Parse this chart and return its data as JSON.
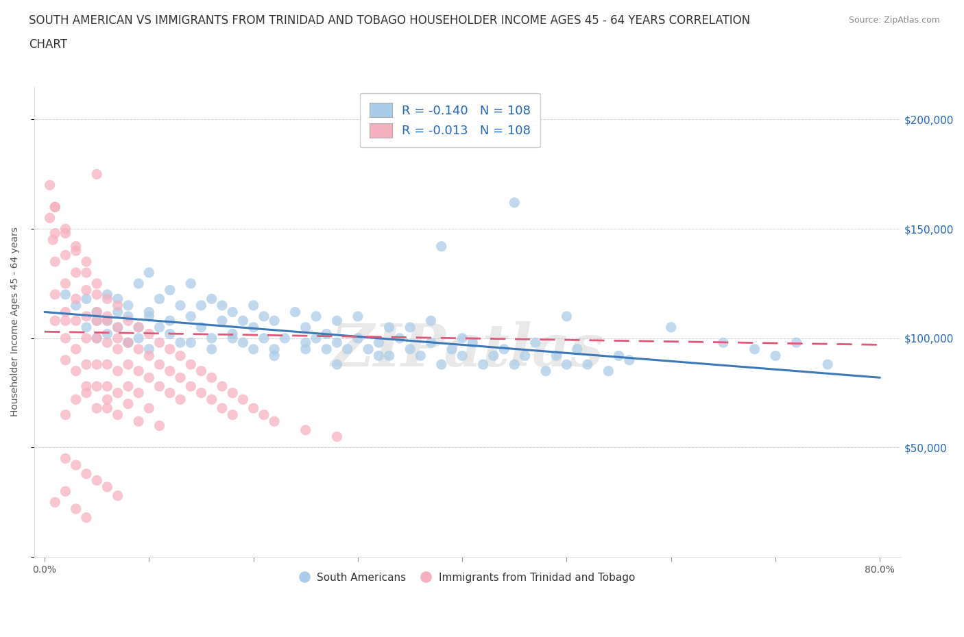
{
  "title_line1": "SOUTH AMERICAN VS IMMIGRANTS FROM TRINIDAD AND TOBAGO HOUSEHOLDER INCOME AGES 45 - 64 YEARS CORRELATION",
  "title_line2": "CHART",
  "source_text": "Source: ZipAtlas.com",
  "ylabel": "Householder Income Ages 45 - 64 years",
  "xlim": [
    -0.01,
    0.82
  ],
  "ylim": [
    0,
    215000
  ],
  "yticks": [
    0,
    50000,
    100000,
    150000,
    200000
  ],
  "right_ytick_labels": [
    "$50,000",
    "$100,000",
    "$150,000",
    "$200,000"
  ],
  "xtick_vals": [
    0.0,
    0.1,
    0.2,
    0.3,
    0.4,
    0.5,
    0.6,
    0.7,
    0.8
  ],
  "watermark": "ZIPatlas",
  "blue_color": "#aacce8",
  "blue_edge_color": "#5599cc",
  "pink_color": "#f5b0c0",
  "pink_edge_color": "#e06888",
  "blue_line_color": "#3a78b8",
  "pink_line_color": "#e05878",
  "legend_R1": "-0.140",
  "legend_N1": "108",
  "legend_R2": "-0.013",
  "legend_N2": "108",
  "label1": "South Americans",
  "label2": "Immigrants from Trinidad and Tobago",
  "title_fontsize": 12,
  "axis_label_fontsize": 10,
  "tick_fontsize": 10,
  "legend_fontsize": 13,
  "blue_scatter_x": [
    0.02,
    0.03,
    0.04,
    0.04,
    0.05,
    0.05,
    0.06,
    0.06,
    0.07,
    0.07,
    0.08,
    0.08,
    0.08,
    0.09,
    0.09,
    0.1,
    0.1,
    0.1,
    0.11,
    0.11,
    0.12,
    0.12,
    0.13,
    0.13,
    0.14,
    0.14,
    0.15,
    0.15,
    0.16,
    0.16,
    0.17,
    0.17,
    0.18,
    0.18,
    0.19,
    0.19,
    0.2,
    0.2,
    0.21,
    0.21,
    0.22,
    0.22,
    0.23,
    0.24,
    0.25,
    0.25,
    0.26,
    0.26,
    0.27,
    0.27,
    0.28,
    0.28,
    0.29,
    0.3,
    0.3,
    0.31,
    0.32,
    0.33,
    0.33,
    0.34,
    0.35,
    0.35,
    0.36,
    0.37,
    0.37,
    0.38,
    0.39,
    0.4,
    0.4,
    0.41,
    0.42,
    0.43,
    0.44,
    0.45,
    0.46,
    0.47,
    0.48,
    0.49,
    0.5,
    0.51,
    0.52,
    0.54,
    0.56,
    0.38,
    0.45,
    0.5,
    0.55,
    0.6,
    0.65,
    0.68,
    0.7,
    0.72,
    0.75,
    0.05,
    0.06,
    0.07,
    0.08,
    0.09,
    0.1,
    0.12,
    0.14,
    0.16,
    0.18,
    0.2,
    0.22,
    0.25,
    0.28,
    0.32
  ],
  "blue_scatter_y": [
    120000,
    115000,
    118000,
    105000,
    112000,
    108000,
    120000,
    102000,
    118000,
    105000,
    115000,
    98000,
    110000,
    125000,
    100000,
    130000,
    112000,
    95000,
    118000,
    105000,
    122000,
    108000,
    115000,
    98000,
    110000,
    125000,
    105000,
    115000,
    118000,
    100000,
    108000,
    115000,
    102000,
    112000,
    98000,
    108000,
    105000,
    115000,
    100000,
    110000,
    95000,
    108000,
    100000,
    112000,
    95000,
    105000,
    100000,
    110000,
    95000,
    102000,
    98000,
    108000,
    95000,
    100000,
    110000,
    95000,
    98000,
    105000,
    92000,
    100000,
    95000,
    105000,
    92000,
    98000,
    108000,
    88000,
    95000,
    100000,
    92000,
    98000,
    88000,
    92000,
    95000,
    88000,
    92000,
    98000,
    85000,
    92000,
    88000,
    95000,
    88000,
    85000,
    90000,
    142000,
    162000,
    110000,
    92000,
    105000,
    98000,
    95000,
    92000,
    98000,
    88000,
    100000,
    108000,
    112000,
    98000,
    105000,
    110000,
    102000,
    98000,
    95000,
    100000,
    95000,
    92000,
    98000,
    88000,
    92000
  ],
  "pink_scatter_x": [
    0.005,
    0.005,
    0.008,
    0.01,
    0.01,
    0.01,
    0.01,
    0.01,
    0.02,
    0.02,
    0.02,
    0.02,
    0.02,
    0.02,
    0.02,
    0.03,
    0.03,
    0.03,
    0.03,
    0.03,
    0.03,
    0.04,
    0.04,
    0.04,
    0.04,
    0.04,
    0.04,
    0.05,
    0.05,
    0.05,
    0.05,
    0.05,
    0.05,
    0.06,
    0.06,
    0.06,
    0.06,
    0.06,
    0.06,
    0.07,
    0.07,
    0.07,
    0.07,
    0.07,
    0.08,
    0.08,
    0.08,
    0.08,
    0.09,
    0.09,
    0.09,
    0.09,
    0.1,
    0.1,
    0.1,
    0.11,
    0.11,
    0.11,
    0.12,
    0.12,
    0.12,
    0.13,
    0.13,
    0.13,
    0.14,
    0.14,
    0.15,
    0.15,
    0.16,
    0.16,
    0.17,
    0.17,
    0.18,
    0.18,
    0.19,
    0.2,
    0.21,
    0.22,
    0.25,
    0.28,
    0.02,
    0.03,
    0.04,
    0.05,
    0.06,
    0.07,
    0.08,
    0.09,
    0.1,
    0.11,
    0.02,
    0.03,
    0.04,
    0.05,
    0.06,
    0.07,
    0.01,
    0.02,
    0.03,
    0.04,
    0.05,
    0.01,
    0.02,
    0.03,
    0.04,
    0.05,
    0.06,
    0.07
  ],
  "pink_scatter_y": [
    170000,
    155000,
    145000,
    160000,
    148000,
    135000,
    120000,
    108000,
    150000,
    138000,
    125000,
    112000,
    100000,
    90000,
    108000,
    142000,
    130000,
    118000,
    108000,
    95000,
    85000,
    135000,
    122000,
    110000,
    100000,
    88000,
    75000,
    125000,
    112000,
    100000,
    88000,
    78000,
    108000,
    118000,
    108000,
    98000,
    88000,
    78000,
    68000,
    115000,
    105000,
    95000,
    85000,
    75000,
    108000,
    98000,
    88000,
    78000,
    105000,
    95000,
    85000,
    75000,
    102000,
    92000,
    82000,
    98000,
    88000,
    78000,
    95000,
    85000,
    75000,
    92000,
    82000,
    72000,
    88000,
    78000,
    85000,
    75000,
    82000,
    72000,
    78000,
    68000,
    75000,
    65000,
    72000,
    68000,
    65000,
    62000,
    58000,
    55000,
    65000,
    72000,
    78000,
    68000,
    72000,
    65000,
    70000,
    62000,
    68000,
    60000,
    45000,
    42000,
    38000,
    35000,
    32000,
    28000,
    25000,
    30000,
    22000,
    18000,
    175000,
    160000,
    148000,
    140000,
    130000,
    120000,
    110000,
    100000
  ]
}
